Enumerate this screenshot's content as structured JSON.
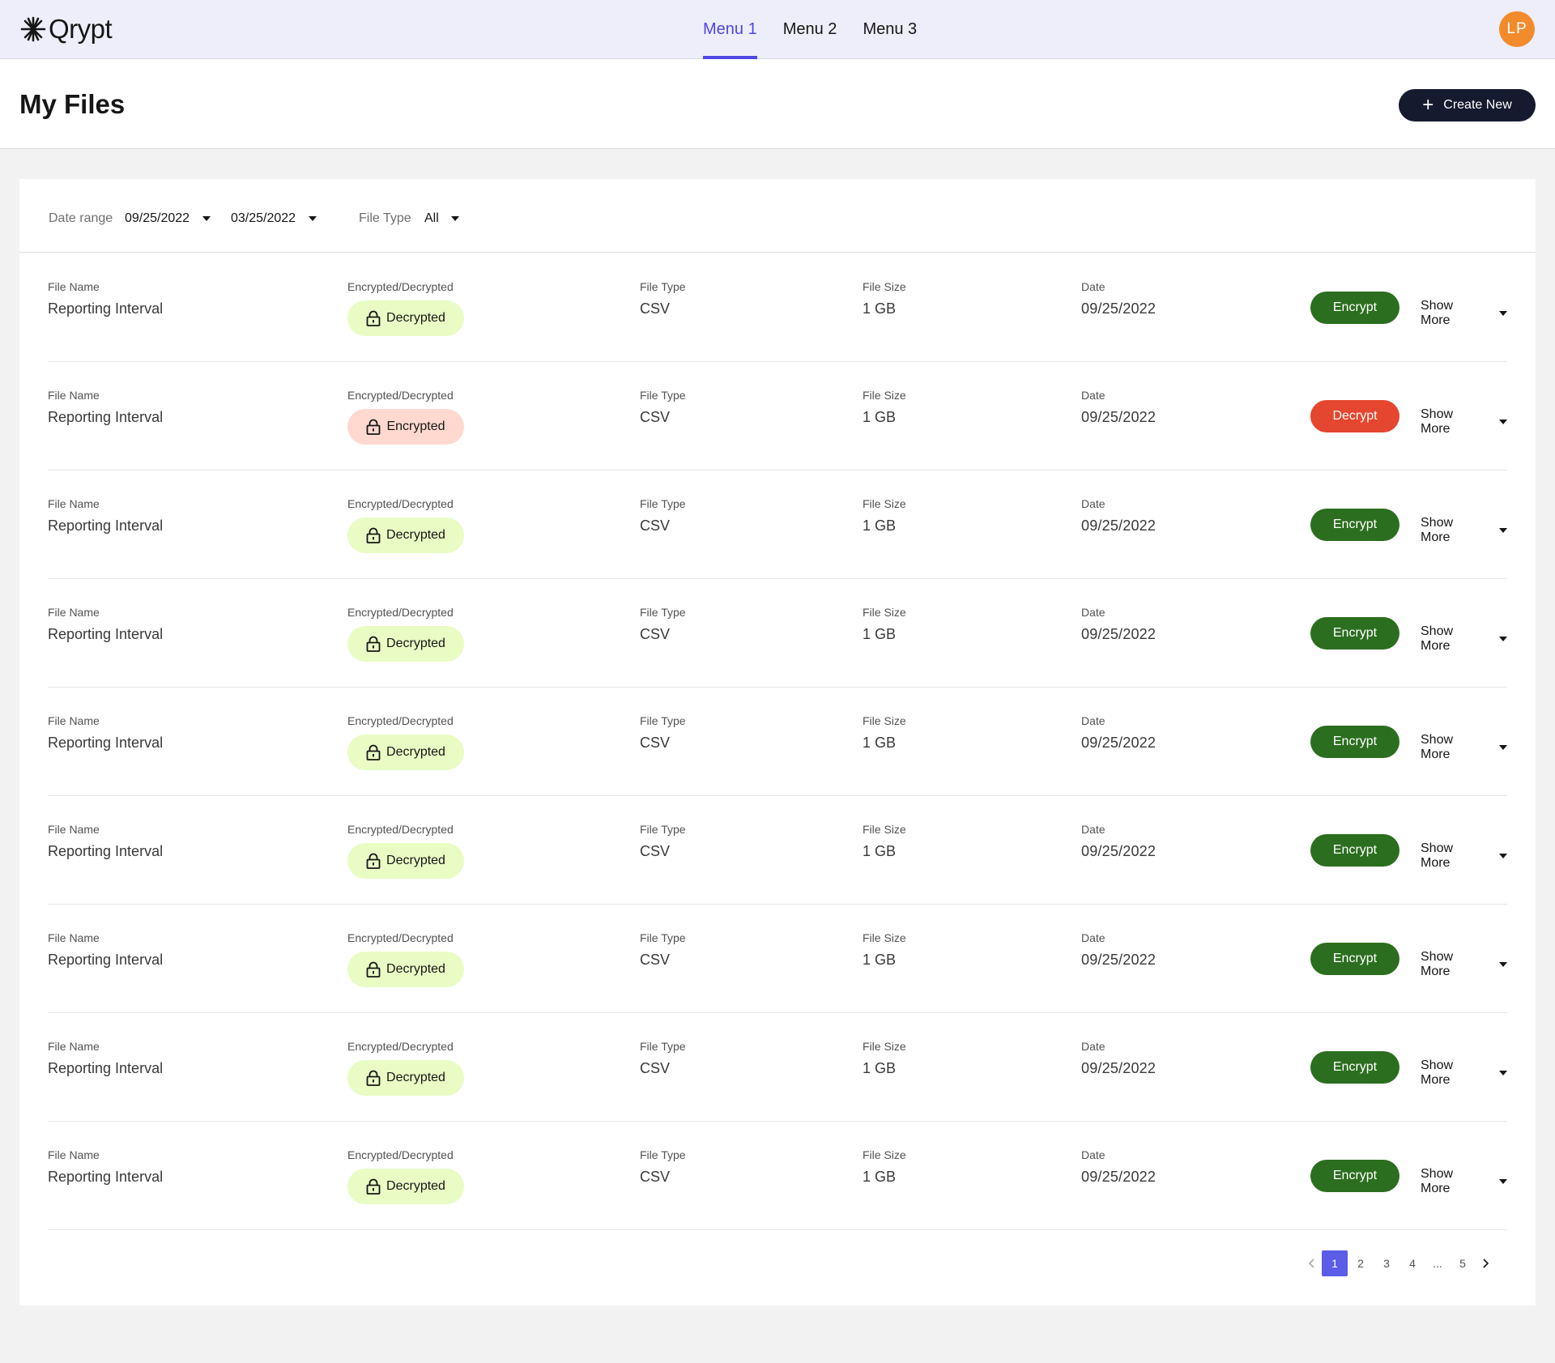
{
  "app": {
    "logo_text": "Qrypt",
    "nav": [
      {
        "label": "Menu 1",
        "active": true
      },
      {
        "label": "Menu 2",
        "active": false
      },
      {
        "label": "Menu 3",
        "active": false
      }
    ],
    "avatar_initials": "LP"
  },
  "header": {
    "title": "My Files",
    "create_label": "Create New",
    "create_icon": "plus-icon"
  },
  "filters": {
    "date_range_label": "Date range",
    "date_start": "09/25/2022",
    "date_end": "03/25/2022",
    "file_type_label": "File Type",
    "file_type_value": "All"
  },
  "columns": {
    "file_name": "File Name",
    "status": "Encrypted/Decrypted",
    "file_type": "File Type",
    "file_size": "File Size",
    "date": "Date"
  },
  "show_more_label": "Show More",
  "rows": [
    {
      "name": "Reporting Interval",
      "status": "Decrypted",
      "type": "CSV",
      "size": "1 GB",
      "date": "09/25/2022",
      "action": "Encrypt"
    },
    {
      "name": "Reporting Interval",
      "status": "Encrypted",
      "type": "CSV",
      "size": "1 GB",
      "date": "09/25/2022",
      "action": "Decrypt"
    },
    {
      "name": "Reporting Interval",
      "status": "Decrypted",
      "type": "CSV",
      "size": "1 GB",
      "date": "09/25/2022",
      "action": "Encrypt"
    },
    {
      "name": "Reporting Interval",
      "status": "Decrypted",
      "type": "CSV",
      "size": "1 GB",
      "date": "09/25/2022",
      "action": "Encrypt"
    },
    {
      "name": "Reporting Interval",
      "status": "Decrypted",
      "type": "CSV",
      "size": "1 GB",
      "date": "09/25/2022",
      "action": "Encrypt"
    },
    {
      "name": "Reporting Interval",
      "status": "Decrypted",
      "type": "CSV",
      "size": "1 GB",
      "date": "09/25/2022",
      "action": "Encrypt"
    },
    {
      "name": "Reporting Interval",
      "status": "Decrypted",
      "type": "CSV",
      "size": "1 GB",
      "date": "09/25/2022",
      "action": "Encrypt"
    },
    {
      "name": "Reporting Interval",
      "status": "Decrypted",
      "type": "CSV",
      "size": "1 GB",
      "date": "09/25/2022",
      "action": "Encrypt"
    },
    {
      "name": "Reporting Interval",
      "status": "Decrypted",
      "type": "CSV",
      "size": "1 GB",
      "date": "09/25/2022",
      "action": "Encrypt"
    }
  ],
  "pagination": {
    "pages": [
      "1",
      "2",
      "3",
      "4",
      "...",
      "5"
    ],
    "current": "1"
  },
  "colors": {
    "accent": "#4f46e5",
    "encrypt_button": "#2c6e1f",
    "decrypt_button": "#e5462f",
    "decrypted_badge": "#e8fcc4",
    "encrypted_badge": "#ffd9cf",
    "avatar": "#f28b2c"
  }
}
